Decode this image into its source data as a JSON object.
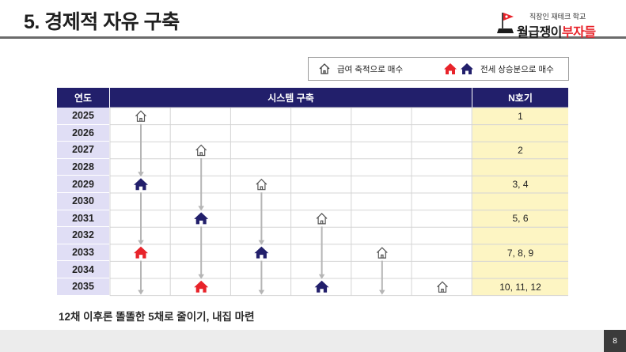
{
  "slide": {
    "title": "5. 경제적 자유 구축",
    "page_number": "8",
    "caption": "12채 이후론 똘똘한 5채로 줄이기, 내집 마련"
  },
  "brand": {
    "subtitle": "직장인 재테크 학교",
    "name_prefix": "월급쟁이",
    "name_highlight": "부자들",
    "highlight_color": "#e8232a"
  },
  "legend": {
    "salary_label": "급여 축적으로 매수",
    "jeonse_label": "전세 상승분으로 매수"
  },
  "table": {
    "headers": {
      "year": "연도",
      "system": "시스템 구축",
      "n": "N호기"
    },
    "years": [
      "2025",
      "2026",
      "2027",
      "2028",
      "2029",
      "2030",
      "2031",
      "2032",
      "2033",
      "2034",
      "2035"
    ],
    "n_values": [
      "1",
      "",
      "2",
      "",
      "3, 4",
      "",
      "5, 6",
      "",
      "7, 8, 9",
      "",
      "10, 11, 12"
    ],
    "columns": [
      {
        "icons": [
          {
            "year": "2025",
            "kind": "outline"
          },
          {
            "year": "2029",
            "kind": "navy"
          },
          {
            "year": "2033",
            "kind": "red"
          }
        ]
      },
      {
        "icons": [
          {
            "year": "2027",
            "kind": "outline"
          },
          {
            "year": "2031",
            "kind": "navy"
          },
          {
            "year": "2035",
            "kind": "red"
          }
        ]
      },
      {
        "icons": [
          {
            "year": "2029",
            "kind": "outline"
          },
          {
            "year": "2033",
            "kind": "navy"
          }
        ]
      },
      {
        "icons": [
          {
            "year": "2031",
            "kind": "outline"
          },
          {
            "year": "2035",
            "kind": "navy"
          }
        ]
      },
      {
        "icons": [
          {
            "year": "2033",
            "kind": "outline"
          }
        ]
      },
      {
        "icons": [
          {
            "year": "2035",
            "kind": "outline"
          }
        ]
      }
    ],
    "colors": {
      "header": "#221f6b",
      "navy": "#221f6b",
      "red": "#e8232a",
      "n_column": "#fdf5c3",
      "year_column": "#e0def5",
      "arrow": "#b5b5b5"
    }
  }
}
